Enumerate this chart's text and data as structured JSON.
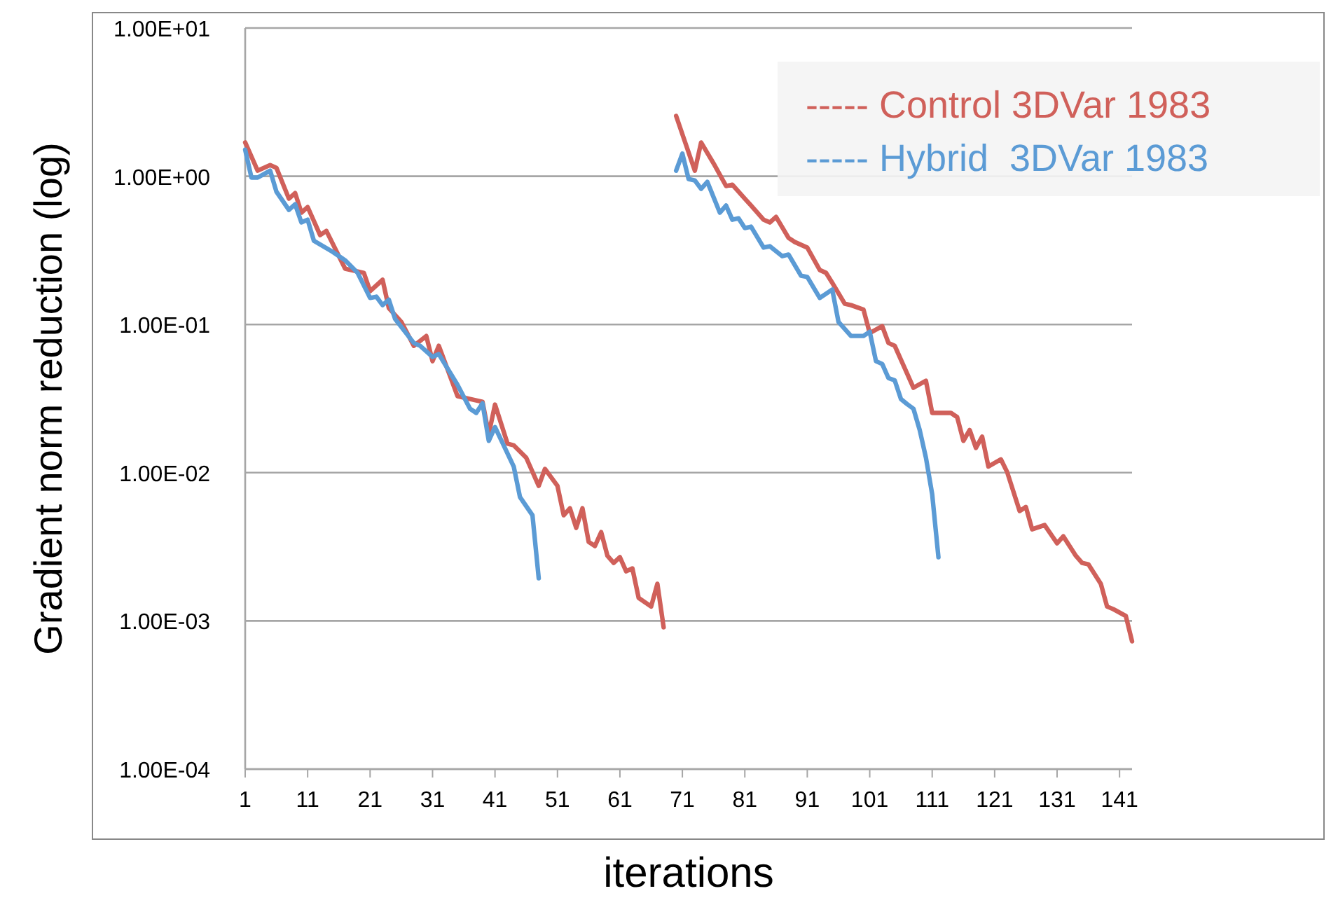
{
  "chart_data": {
    "type": "line",
    "xlabel": "iterations",
    "ylabel": "Gradient norm reduction (log)",
    "log": "y",
    "grid": "y",
    "legend": "top right",
    "line_style": "solid",
    "marker": "none",
    "xlim": [
      1,
      143
    ],
    "xticks": [
      1,
      11,
      21,
      31,
      41,
      51,
      61,
      71,
      81,
      91,
      101,
      111,
      121,
      131,
      141
    ],
    "ylim": [
      0.0001,
      10
    ],
    "yticks": [
      {
        "value": 10,
        "label": "1.00E+01"
      },
      {
        "value": 1,
        "label": "1.00E+00"
      },
      {
        "value": 0.1,
        "label": "1.00E-01"
      },
      {
        "value": 0.01,
        "label": "1.00E-02"
      },
      {
        "value": 0.001,
        "label": "1.00E-03"
      },
      {
        "value": 0.0001,
        "label": "1.00E-04"
      }
    ],
    "series": [
      {
        "name": "----- Control 3DVar 1983",
        "color": "#d0605a",
        "x": [
          1,
          3,
          5,
          6,
          8,
          9,
          10,
          11,
          13,
          14,
          17,
          20,
          21,
          23,
          24,
          26,
          28,
          30,
          31,
          32,
          35,
          37,
          39,
          40,
          41,
          43,
          44,
          46,
          48,
          49,
          51,
          52,
          53,
          54,
          55,
          56,
          57,
          58,
          59,
          60,
          61,
          62,
          63,
          64,
          66,
          67,
          68,
          69,
          70,
          73,
          74,
          76,
          78,
          79,
          81,
          82,
          84,
          85,
          86,
          88,
          89,
          91,
          93,
          94,
          95,
          97,
          98,
          100,
          101,
          103,
          104,
          105,
          108,
          110,
          111,
          114,
          115,
          116,
          117,
          118,
          119,
          120,
          122,
          123,
          125,
          126,
          127,
          129,
          131,
          132,
          134,
          135,
          136,
          138,
          139,
          140,
          142,
          143
        ],
        "values": [
          1.69,
          1.09,
          1.19,
          1.14,
          0.706,
          0.77,
          0.568,
          0.62,
          0.401,
          0.428,
          0.238,
          0.223,
          0.168,
          0.2,
          0.129,
          0.104,
          0.0718,
          0.0836,
          0.0565,
          0.0718,
          0.0328,
          0.0314,
          0.0301,
          0.0182,
          0.0288,
          0.0157,
          0.0153,
          0.0126,
          0.00815,
          0.0106,
          0.00815,
          0.00516,
          0.00575,
          0.00424,
          0.00575,
          0.00341,
          0.0032,
          0.00397,
          0.00275,
          0.00246,
          0.00269,
          0.00216,
          0.00226,
          0.00143,
          0.00125,
          0.00178,
          0.000905,
          null,
          2.55,
          1.09,
          1.69,
          1.22,
          0.859,
          0.877,
          0.706,
          0.634,
          0.509,
          0.488,
          0.532,
          0.384,
          0.36,
          0.33,
          0.233,
          0.223,
          0.191,
          0.138,
          0.135,
          0.126,
          0.0874,
          0.0974,
          0.075,
          0.0718,
          0.0374,
          0.0417,
          0.0253,
          0.0253,
          0.0237,
          0.0164,
          0.0194,
          0.0147,
          0.0175,
          0.011,
          0.0123,
          0.0101,
          0.00551,
          0.00587,
          0.00415,
          0.00443,
          0.00334,
          0.00372,
          0.00275,
          0.00246,
          0.00241,
          0.00178,
          0.00125,
          0.0012,
          0.00108,
          0.000728
        ]
      },
      {
        "name": "----- Hybrid  3DVar 1983",
        "color": "#5b9bd5",
        "x": [
          1,
          2,
          3,
          5,
          6,
          8,
          9,
          10,
          11,
          12,
          15,
          17,
          19,
          21,
          22,
          23,
          24,
          25,
          28,
          29,
          31,
          32,
          35,
          37,
          38,
          39,
          40,
          41,
          44,
          45,
          47,
          48,
          60,
          70,
          71,
          72,
          73,
          74,
          75,
          77,
          78,
          79,
          80,
          81,
          82,
          84,
          85,
          87,
          88,
          90,
          91,
          93,
          95,
          96,
          98,
          100,
          101,
          102,
          103,
          104,
          105,
          106,
          107,
          108,
          109,
          110,
          111,
          112
        ],
        "values": [
          1.51,
          0.98,
          0.98,
          1.09,
          0.787,
          0.593,
          0.647,
          0.488,
          0.509,
          0.367,
          0.309,
          0.271,
          0.223,
          0.151,
          0.154,
          0.135,
          0.147,
          0.109,
          0.075,
          0.0718,
          0.0604,
          0.0631,
          0.0391,
          0.027,
          0.0253,
          0.0294,
          0.0164,
          0.0203,
          0.011,
          0.00685,
          0.00516,
          0.00194,
          null,
          1.09,
          1.42,
          0.957,
          0.937,
          0.822,
          0.916,
          0.568,
          0.634,
          0.509,
          0.52,
          0.447,
          0.457,
          0.33,
          0.337,
          0.289,
          0.296,
          0.213,
          0.209,
          0.151,
          0.172,
          0.104,
          0.0836,
          0.0836,
          0.0893,
          0.0565,
          0.0541,
          0.0435,
          0.042,
          0.0314,
          0.029,
          0.027,
          0.0194,
          0.0126,
          0.00715,
          0.00269
        ]
      }
    ]
  }
}
